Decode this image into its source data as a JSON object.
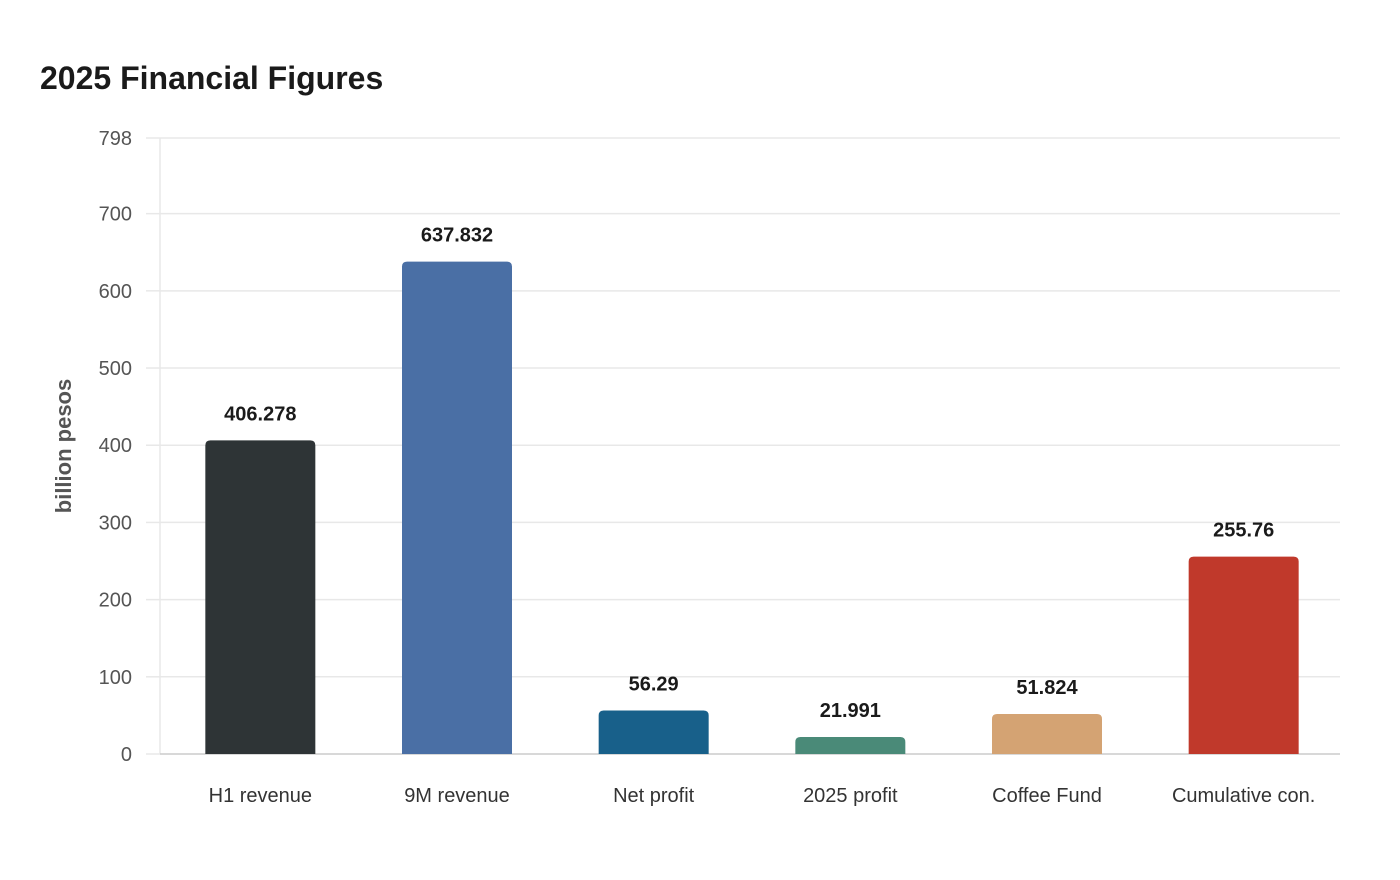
{
  "chart_data": {
    "type": "bar",
    "title": "2025 Financial Figures",
    "xlabel": "",
    "ylabel": "billion pesos",
    "ylim": [
      0,
      798
    ],
    "yticks": [
      0,
      100,
      200,
      300,
      400,
      500,
      600,
      700,
      798
    ],
    "grid": true,
    "legend": "none",
    "categories": [
      "H1 revenue",
      "9M revenue",
      "Net profit",
      "2025 profit",
      "Coffee Fund",
      "Cumulative con."
    ],
    "values": [
      406.278,
      637.832,
      56.29,
      21.991,
      51.824,
      255.76
    ],
    "value_labels": [
      "406.278",
      "637.832",
      "56.29",
      "21.991",
      "51.824",
      "255.76"
    ],
    "colors": [
      "#2e3436",
      "#4a6fa5",
      "#18608a",
      "#4a8a78",
      "#d4a373",
      "#c0392b"
    ]
  }
}
